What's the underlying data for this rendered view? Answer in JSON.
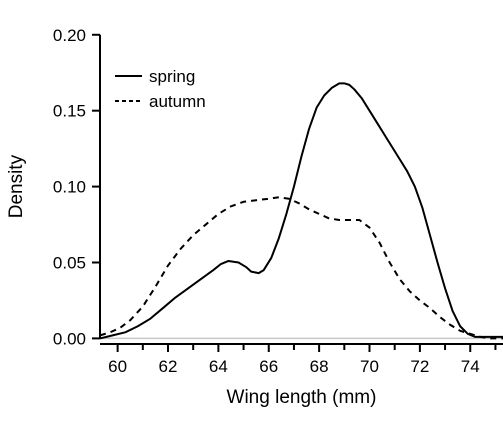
{
  "chart_data": {
    "type": "line",
    "xlabel": "Wing length (mm)",
    "ylabel": "Density",
    "xlim": [
      59.3,
      75.3
    ],
    "ylim": [
      -0.005,
      0.215
    ],
    "x_ticks": [
      60,
      61,
      62,
      63,
      64,
      65,
      66,
      67,
      68,
      69,
      70,
      71,
      72,
      73,
      74,
      75
    ],
    "x_tick_labels": [
      "60",
      "62",
      "64",
      "66",
      "68",
      "70",
      "72",
      "74"
    ],
    "y_ticks": [
      0.0,
      0.05,
      0.1,
      0.15,
      0.2
    ],
    "y_tick_labels": [
      "0.00",
      "0.05",
      "0.10",
      "0.15",
      "0.20"
    ],
    "baseline": 0,
    "legend_position": "top-left",
    "series": [
      {
        "name": "spring",
        "line_style": "solid",
        "color": "#000000",
        "x": [
          59.3,
          59.8,
          60.3,
          60.8,
          61.3,
          61.8,
          62.3,
          62.8,
          63.3,
          63.8,
          64.1,
          64.4,
          64.8,
          65.1,
          65.3,
          65.6,
          65.8,
          66.1,
          66.4,
          66.7,
          67.0,
          67.3,
          67.6,
          67.9,
          68.2,
          68.5,
          68.8,
          69.0,
          69.2,
          69.4,
          69.7,
          70.0,
          70.3,
          70.6,
          70.9,
          71.2,
          71.5,
          71.8,
          72.1,
          72.4,
          72.7,
          73.0,
          73.3,
          73.6,
          73.9,
          74.2,
          74.6,
          75.0,
          75.3
        ],
        "y": [
          0.0,
          0.002,
          0.004,
          0.008,
          0.013,
          0.02,
          0.027,
          0.033,
          0.039,
          0.045,
          0.049,
          0.051,
          0.05,
          0.047,
          0.044,
          0.043,
          0.045,
          0.053,
          0.066,
          0.082,
          0.1,
          0.12,
          0.138,
          0.152,
          0.16,
          0.165,
          0.168,
          0.168,
          0.167,
          0.164,
          0.158,
          0.15,
          0.142,
          0.134,
          0.126,
          0.118,
          0.11,
          0.1,
          0.086,
          0.068,
          0.05,
          0.033,
          0.018,
          0.008,
          0.003,
          0.001,
          0.001,
          0.001,
          0.001
        ]
      },
      {
        "name": "autumn",
        "line_style": "dashed",
        "color": "#000000",
        "x": [
          59.3,
          59.7,
          60.1,
          60.5,
          61.0,
          61.5,
          62.0,
          62.5,
          63.0,
          63.5,
          64.0,
          64.5,
          65.0,
          65.5,
          66.0,
          66.4,
          66.8,
          67.2,
          67.6,
          68.0,
          68.4,
          68.8,
          69.2,
          69.6,
          70.0,
          70.4,
          70.8,
          71.2,
          71.6,
          72.0,
          72.4,
          72.8,
          73.2,
          73.6,
          74.0,
          74.4,
          74.8,
          75.3
        ],
        "y": [
          0.002,
          0.004,
          0.007,
          0.012,
          0.021,
          0.034,
          0.048,
          0.059,
          0.068,
          0.075,
          0.082,
          0.087,
          0.09,
          0.091,
          0.092,
          0.093,
          0.092,
          0.089,
          0.085,
          0.082,
          0.079,
          0.078,
          0.078,
          0.078,
          0.073,
          0.063,
          0.05,
          0.039,
          0.031,
          0.025,
          0.02,
          0.014,
          0.009,
          0.005,
          0.003,
          0.001,
          0.0,
          0.0
        ]
      }
    ],
    "colors": {
      "axis": "#000000",
      "baseline": "#c8c8c8",
      "background": "#ffffff"
    }
  }
}
